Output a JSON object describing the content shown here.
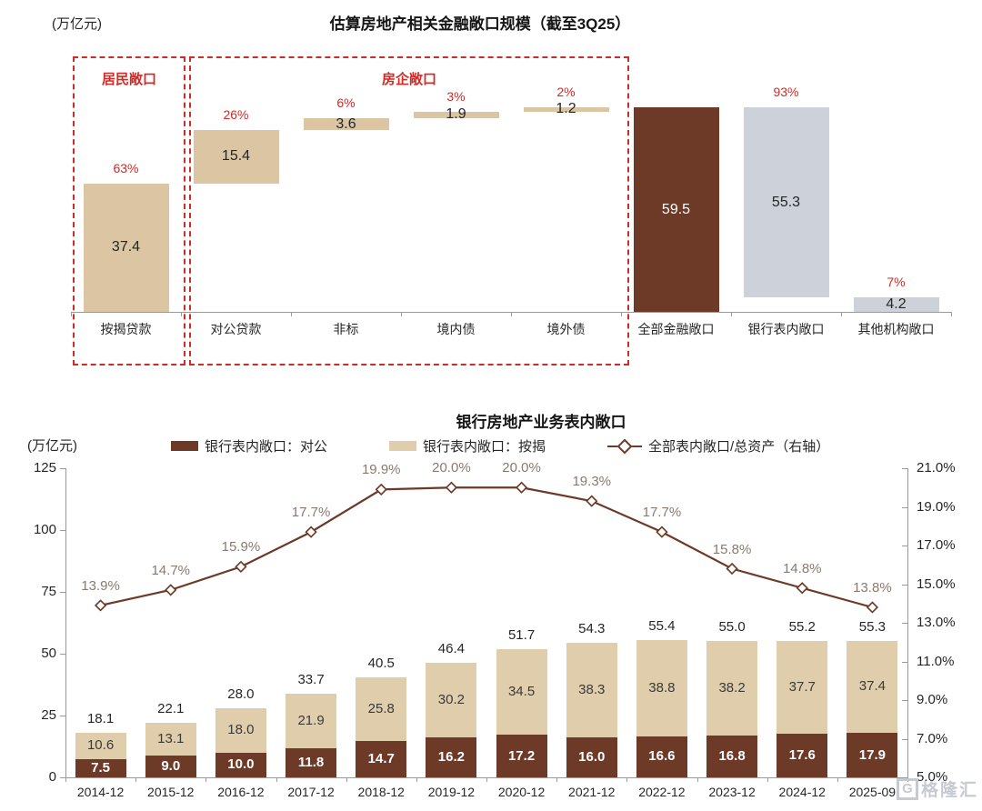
{
  "watermark": {
    "logo_letter": "G",
    "text": "格隆汇"
  },
  "chart_data": [
    {
      "type": "bar",
      "subtype": "waterfall",
      "title": "估算房地产相关金融敞口规模（截至3Q25）",
      "unit_label": "(万亿元)",
      "legend_position": "none",
      "grid": false,
      "categories": [
        "按揭贷款",
        "对公贷款",
        "非标",
        "境内债",
        "境外债",
        "全部金融敞口",
        "银行表内敞口",
        "其他机构敞口"
      ],
      "bars": [
        {
          "category": "按揭贷款",
          "value": 37.4,
          "base": 0,
          "display": "37.4",
          "pct": "63%",
          "color": "tan"
        },
        {
          "category": "对公贷款",
          "value": 15.4,
          "base": 37.4,
          "display": "15.4",
          "pct": "26%",
          "color": "tan"
        },
        {
          "category": "非标",
          "value": 3.6,
          "base": 52.8,
          "display": "3.6",
          "pct": "6%",
          "color": "tan"
        },
        {
          "category": "境内债",
          "value": 1.9,
          "base": 56.4,
          "display": "1.9",
          "pct": "3%",
          "color": "tan"
        },
        {
          "category": "境外债",
          "value": 1.2,
          "base": 58.3,
          "display": "1.2",
          "pct": "2%",
          "color": "tan"
        },
        {
          "category": "全部金融敞口",
          "value": 59.5,
          "base": 0,
          "display": "59.5",
          "pct": null,
          "color": "brown"
        },
        {
          "category": "银行表内敞口",
          "value": 55.3,
          "base": 4.2,
          "display": "55.3",
          "pct": "93%",
          "color": "gray"
        },
        {
          "category": "其他机构敞口",
          "value": 4.2,
          "base": 0,
          "display": "4.2",
          "pct": "7%",
          "color": "gray"
        }
      ],
      "groups": [
        {
          "label": "居民敞口",
          "from": 0,
          "to": 0
        },
        {
          "label": "房企敞口",
          "from": 1,
          "to": 4
        }
      ],
      "ylim": [
        0,
        59.5
      ],
      "colors": {
        "tan": "#DBC5A2",
        "brown": "#6E3A28",
        "gray": "#CDD1DA",
        "percent_red": "#cf2b27",
        "box_red": "#cf2b27"
      }
    },
    {
      "type": "bar+line",
      "subtype": "stacked-bar-with-line",
      "title": "银行房地产业务表内敞口",
      "unit_label": "(万亿元)",
      "legend": [
        "银行表内敞口：对公",
        "银行表内敞口：按揭",
        "全部表内敞口/总资产（右轴）"
      ],
      "legend_position": "top",
      "grid": false,
      "categories": [
        "2014-12",
        "2015-12",
        "2016-12",
        "2017-12",
        "2018-12",
        "2019-12",
        "2020-12",
        "2021-12",
        "2022-12",
        "2023-12",
        "2024-12",
        "2025-09"
      ],
      "series": [
        {
          "name": "银行表内敞口：对公",
          "type": "bar",
          "stack": true,
          "values": [
            7.5,
            9.0,
            10.0,
            11.8,
            14.7,
            16.2,
            17.2,
            16.0,
            16.6,
            16.8,
            17.6,
            17.9
          ],
          "labels": [
            "7.5",
            "9.0",
            "10.0",
            "11.8",
            "14.7",
            "16.2",
            "17.2",
            "16.0",
            "16.6",
            "16.8",
            "17.6",
            "17.9"
          ]
        },
        {
          "name": "银行表内敞口：按揭",
          "type": "bar",
          "stack": true,
          "values": [
            10.6,
            13.1,
            18.0,
            21.9,
            25.8,
            30.2,
            34.5,
            38.3,
            38.8,
            38.2,
            37.7,
            37.4
          ],
          "labels": [
            "10.6",
            "13.1",
            "18.0",
            "21.9",
            "25.8",
            "30.2",
            "34.5",
            "38.3",
            "38.8",
            "38.2",
            "37.7",
            "37.4"
          ]
        },
        {
          "name": "全部表内敞口/总资产（右轴）",
          "type": "line",
          "axis": "right",
          "values": [
            13.9,
            14.7,
            15.9,
            17.7,
            19.9,
            20.0,
            20.0,
            19.3,
            17.7,
            15.8,
            14.8,
            13.8
          ],
          "labels": [
            "13.9%",
            "14.7%",
            "15.9%",
            "17.7%",
            "19.9%",
            "20.0%",
            "20.0%",
            "19.3%",
            "17.7%",
            "15.8%",
            "14.8%",
            "13.8%"
          ]
        }
      ],
      "totals": [
        "18.1",
        "22.1",
        "28.0",
        "33.7",
        "40.5",
        "46.4",
        "51.7",
        "54.3",
        "55.4",
        "55.0",
        "55.2",
        "55.3"
      ],
      "left_axis": {
        "ticks": [
          0,
          25,
          50,
          75,
          100,
          125
        ],
        "min": 0,
        "max": 125
      },
      "right_axis": {
        "tick_labels": [
          "5.0%",
          "7.0%",
          "9.0%",
          "11.0%",
          "13.0%",
          "15.0%",
          "17.0%",
          "19.0%",
          "21.0%"
        ],
        "min": 5,
        "max": 21
      },
      "colors": {
        "brown": "#6E3A28",
        "tan": "#E0CDAC",
        "line": "#6E3A28",
        "line_label": "#8A7A6E"
      }
    }
  ]
}
